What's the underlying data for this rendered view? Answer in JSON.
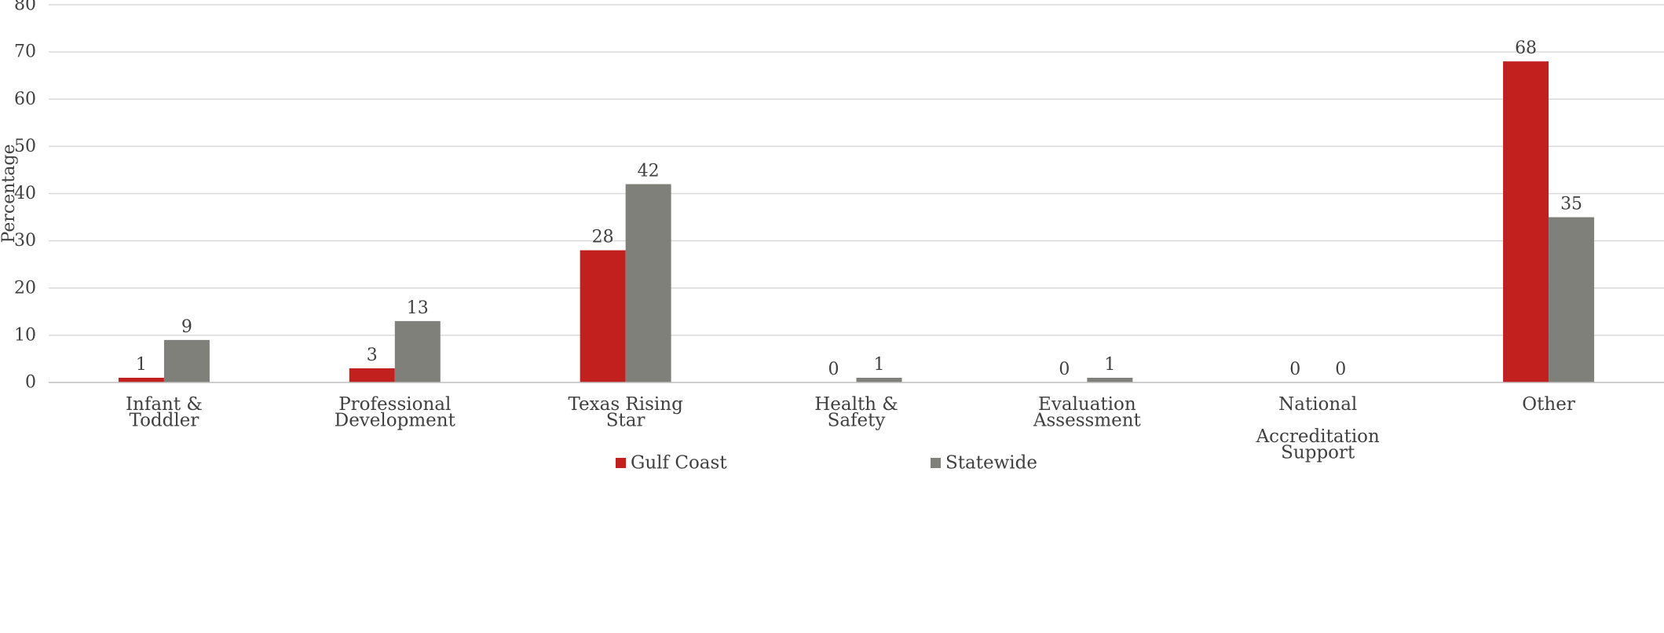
{
  "chart_data": {
    "type": "bar",
    "title": "",
    "xlabel": "",
    "ylabel": "Percentage",
    "ylim": [
      0,
      80
    ],
    "yticks": [
      0,
      10,
      20,
      30,
      40,
      50,
      60,
      70,
      80
    ],
    "grid": true,
    "legend_position": "bottom",
    "categories": [
      [
        "Infant &",
        "Toddler"
      ],
      [
        "Professional",
        "Development"
      ],
      [
        "Texas Rising",
        "Star"
      ],
      [
        "Health &",
        "Safety"
      ],
      [
        "Evaluation",
        "Assessment"
      ],
      [
        "National",
        "",
        "Accreditation",
        "Support"
      ],
      [
        "Other"
      ]
    ],
    "series": [
      {
        "name": "Gulf Coast",
        "color": "#c21f1f",
        "values": [
          1,
          3,
          28,
          0,
          0,
          0,
          68
        ]
      },
      {
        "name": "Statewide",
        "color": "#80807b",
        "values": [
          9,
          13,
          42,
          1,
          1,
          0,
          35
        ]
      }
    ]
  }
}
